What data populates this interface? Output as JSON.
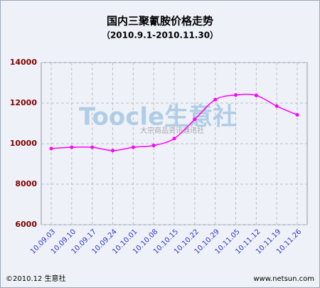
{
  "chart_data": {
    "type": "line",
    "title": "国内三聚氰胺价格走势",
    "subtitle": "（2010.9.1-2010.11.30）",
    "categories": [
      "10.09.03",
      "10.09.10",
      "10.09.17",
      "10.09.24",
      "10.10.01",
      "10.10.08",
      "10.10.15",
      "10.10.22",
      "10.10.29",
      "10.11.05",
      "10.11.12",
      "10.11.19",
      "10.11.26"
    ],
    "series": [
      {
        "color": "#ff00ff",
        "values": [
          9760,
          9820,
          9820,
          9660,
          9820,
          9910,
          10250,
          11200,
          12170,
          12400,
          12380,
          11850,
          11420
        ]
      }
    ],
    "ylim": [
      6000,
      14000
    ],
    "yticks": [
      6000,
      8000,
      10000,
      12000,
      14000
    ],
    "grid": true,
    "watermark": "Toocle生意社",
    "watermark_sub": "大宗商品资讯通讯社",
    "footer_left": "©2010.12 生意社",
    "footer_right": "www.netsun.com"
  }
}
